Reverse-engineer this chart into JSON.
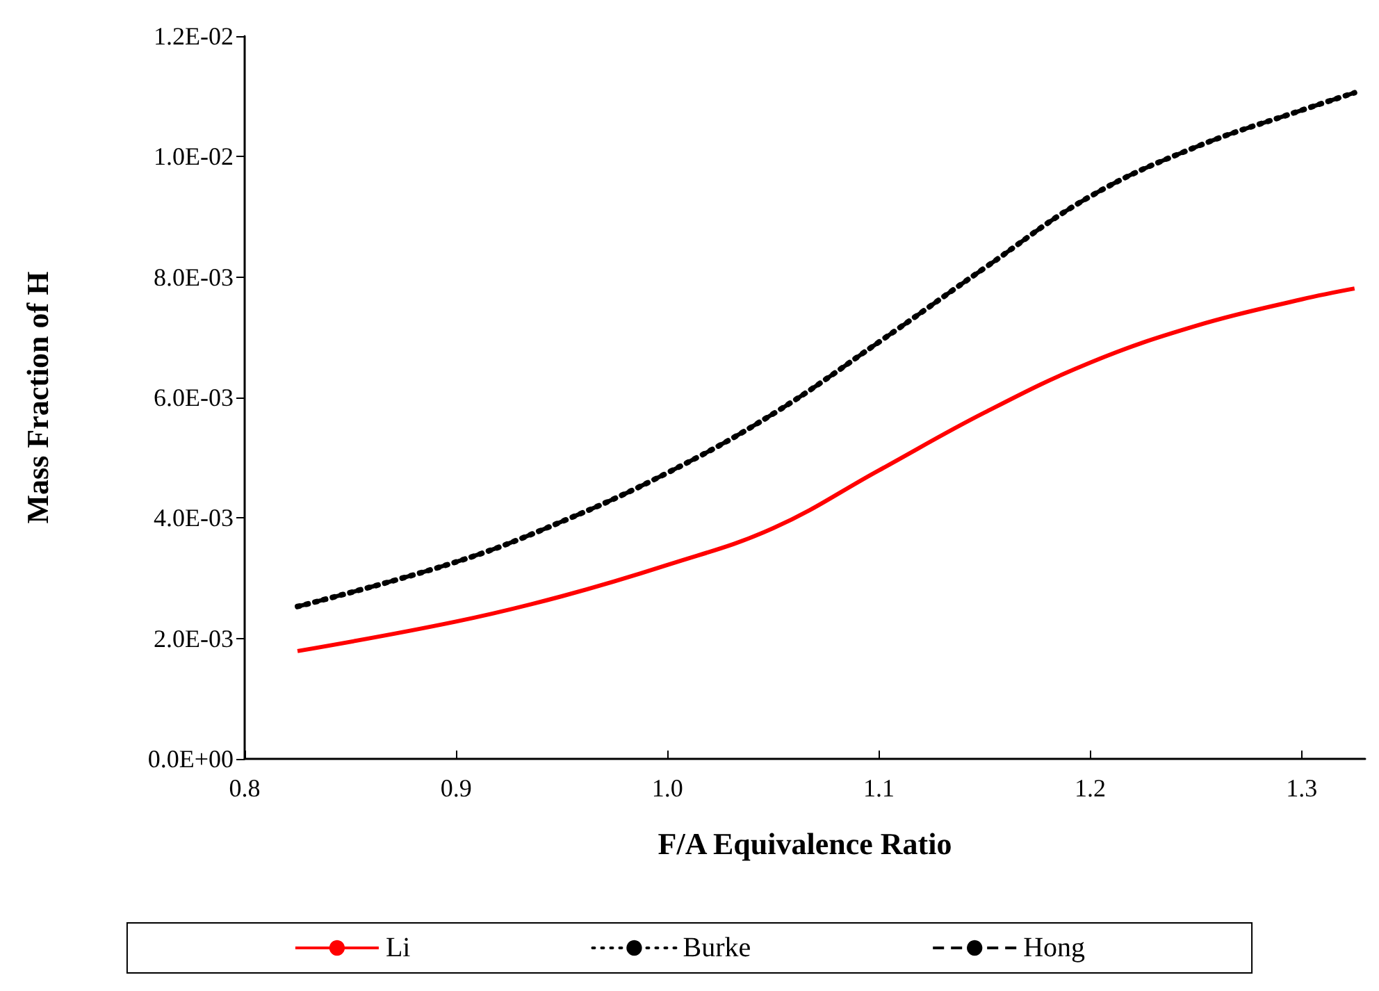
{
  "chart_data": {
    "type": "line",
    "xlabel": "F/A Equivalence Ratio",
    "ylabel": "Mass Fraction of H",
    "x": [
      0.825,
      0.9,
      0.95,
      1.0,
      1.05,
      1.1,
      1.15,
      1.2,
      1.25,
      1.3,
      1.325
    ],
    "series": [
      {
        "name": "Li",
        "color": "#ff0000",
        "line_style": "solid",
        "values": [
          0.00179,
          0.00228,
          0.0027,
          0.00322,
          0.00383,
          0.00479,
          0.00575,
          0.00658,
          0.00719,
          0.00763,
          0.00781
        ]
      },
      {
        "name": "Burke",
        "color": "#000000",
        "line_style": "dotted",
        "values": [
          0.00253,
          0.00327,
          0.00394,
          0.00475,
          0.00573,
          0.00692,
          0.00815,
          0.00934,
          0.01016,
          0.01077,
          0.01106
        ]
      },
      {
        "name": "Hong",
        "color": "#000000",
        "line_style": "dashed",
        "values": [
          0.00253,
          0.00327,
          0.00394,
          0.00475,
          0.00573,
          0.00692,
          0.00815,
          0.00934,
          0.01016,
          0.01077,
          0.01106
        ]
      }
    ],
    "xlim": [
      0.8,
      1.33
    ],
    "xticks": [
      0.8,
      0.9,
      {
        "value": 1.0,
        "label": "1.0"
      },
      1.1,
      1.2,
      1.3
    ],
    "ylim": [
      0,
      0.012
    ],
    "yticks": [
      {
        "value": 0,
        "label": "0.0E+00"
      },
      {
        "value": 0.002,
        "label": "2.0E-03"
      },
      {
        "value": 0.004,
        "label": "4.0E-03"
      },
      {
        "value": 0.006,
        "label": "6.0E-03"
      },
      {
        "value": 0.008,
        "label": "8.0E-03"
      },
      {
        "value": 0.01,
        "label": "1.0E-02"
      },
      {
        "value": 0.012,
        "label": "1.2E-02"
      }
    ],
    "grid": false,
    "legend": "bottom",
    "marker": "none"
  }
}
